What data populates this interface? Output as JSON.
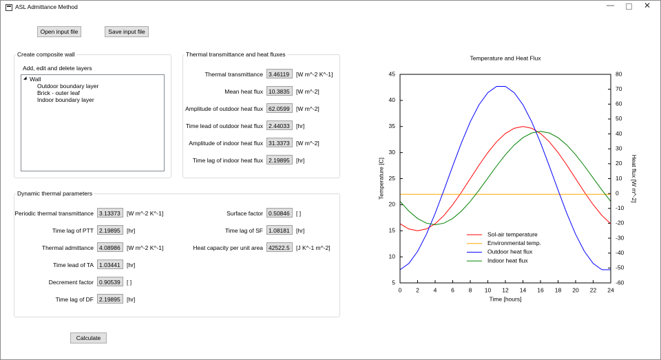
{
  "window": {
    "title": "ASL Admittance Method"
  },
  "buttons": {
    "open": "Open input file",
    "save": "Save input file",
    "calculate": "Calculate"
  },
  "composite_wall": {
    "title": "Create composite wall",
    "subtitle": "Add, edit and delete layers",
    "tree": {
      "root": "Wall",
      "children": [
        "Outdoor boundary layer",
        "Brick - outer leaf",
        "Indoor boundary layer"
      ]
    }
  },
  "transmittance": {
    "title": "Thermal transmittance and heat fluxes",
    "fields": [
      {
        "label": "Thermal transmittance",
        "value": "3.46119",
        "unit": "[W m^-2 K^-1]"
      },
      {
        "label": "Mean heat flux",
        "value": "10.3835",
        "unit": "[W m^-2]"
      },
      {
        "label": "Amplitude of outdoor heat flux",
        "value": "62.0599",
        "unit": "[W m^-2]"
      },
      {
        "label": "Time lead of outdoor heat flux",
        "value": "2.44033",
        "unit": "[hr]"
      },
      {
        "label": "Amplitude of indoor heat flux",
        "value": "31.3373",
        "unit": "[W m^-2]"
      },
      {
        "label": "Time lag of indoor heat flux",
        "value": "2.19895",
        "unit": "[hr]"
      }
    ]
  },
  "dynamic": {
    "title": "Dynamic thermal parameters",
    "left": [
      {
        "label": "Periodic thermal transmittance",
        "value": "3.13373",
        "unit": "[W m^-2 K^-1]"
      },
      {
        "label": "Time lag of PTT",
        "value": "2.19895",
        "unit": "[hr]"
      },
      {
        "label": "Thermal admittance",
        "value": "4.08986",
        "unit": "[W m^-2 K^-1]"
      },
      {
        "label": "Time lead of TA",
        "value": "1.03441",
        "unit": "[hr]"
      },
      {
        "label": "Decrement factor",
        "value": "0.90539",
        "unit": "[ ]"
      },
      {
        "label": "Time lag of DF",
        "value": "2.19895",
        "unit": "[hr]"
      }
    ],
    "right": [
      {
        "label": "Surface factor",
        "value": "0.50846",
        "unit": "[ ]"
      },
      {
        "label": "Time lag of SF",
        "value": "1.08181",
        "unit": "[hr]"
      },
      {
        "label": "Heat capacity per unit area",
        "value": "42522.5",
        "unit": "[J  K^-1 m^-2]"
      }
    ]
  },
  "chart_data": {
    "type": "line",
    "title": "Temperature and Heat Flux",
    "xlabel": "Time [hours]",
    "ylabel": "Temperature [C]",
    "y2label": "Heat flux [W m^-2]",
    "x": [
      0,
      1,
      2,
      3,
      4,
      5,
      6,
      7,
      8,
      9,
      10,
      11,
      12,
      13,
      14,
      15,
      16,
      17,
      18,
      19,
      20,
      21,
      22,
      23,
      24
    ],
    "xlim": [
      0,
      24
    ],
    "xticks": [
      0,
      2,
      4,
      6,
      8,
      10,
      12,
      14,
      16,
      18,
      20,
      22,
      24
    ],
    "ylim": [
      5,
      45
    ],
    "yticks": [
      5,
      10,
      15,
      20,
      25,
      30,
      35,
      40,
      45
    ],
    "y2lim": [
      -60,
      80
    ],
    "y2ticks": [
      -60,
      -50,
      -40,
      -30,
      -20,
      -10,
      0,
      10,
      20,
      30,
      40,
      50,
      60,
      70,
      80
    ],
    "grid": false,
    "legend": "lower center",
    "series": [
      {
        "name": "Sol-air temperature",
        "color": "#ff0000",
        "values": [
          16.34,
          15.34,
          15.0,
          15.34,
          16.34,
          17.93,
          20.0,
          22.41,
          25.0,
          27.59,
          30.0,
          32.07,
          33.66,
          34.66,
          35.0,
          34.66,
          33.66,
          32.07,
          30.0,
          27.59,
          25.0,
          22.41,
          20.0,
          17.93,
          16.34
        ]
      },
      {
        "name": "Environmental temp.",
        "color": "#ffa500",
        "values": [
          22,
          22,
          22,
          22,
          22,
          22,
          22,
          22,
          22,
          22,
          22,
          22,
          22,
          22,
          22,
          22,
          22,
          22,
          22,
          22,
          22,
          22,
          22,
          22,
          22
        ]
      },
      {
        "name": "Outdoor heat flux",
        "color": "#0000ff",
        "axis": "y2",
        "values": [
          -51.15,
          -46.96,
          -38.86,
          -27.4,
          -13.37,
          2.28,
          18.48,
          34.13,
          48.16,
          59.62,
          67.72,
          71.91,
          71.91,
          67.72,
          59.62,
          48.16,
          34.13,
          18.48,
          2.28,
          -13.37,
          -27.4,
          -38.86,
          -46.96,
          -51.15,
          -51.15
        ]
      },
      {
        "name": "Indoor heat flux",
        "color": "#008000",
        "axis": "y2",
        "values": [
          -5.29,
          -11.78,
          -16.76,
          -19.89,
          -20.96,
          -19.89,
          -16.76,
          -11.78,
          -5.29,
          2.27,
          10.38,
          18.49,
          26.05,
          32.54,
          37.52,
          40.65,
          41.72,
          40.65,
          37.52,
          32.54,
          26.05,
          18.49,
          10.38,
          2.27,
          -5.29
        ]
      }
    ]
  }
}
